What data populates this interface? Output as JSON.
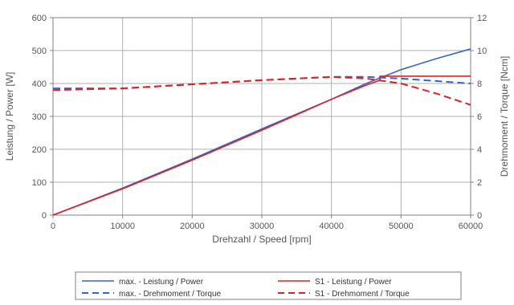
{
  "chart_data": {
    "type": "line",
    "title": "",
    "xlabel": "Drehzahl / Speed [rpm]",
    "ylabel_left": "Leistung / Power [W]",
    "ylabel_right": "Drehmoment / Torque [Ncm]",
    "xlim": [
      0,
      60000
    ],
    "ylim_left": [
      0,
      600
    ],
    "ylim_right": [
      0,
      12
    ],
    "x_ticks": [
      "0",
      "10000",
      "20000",
      "30000",
      "40000",
      "50000",
      "60000"
    ],
    "y_left_ticks": [
      "0",
      "100",
      "200",
      "300",
      "400",
      "500",
      "600"
    ],
    "y_right_ticks": [
      "0",
      "2",
      "4",
      "6",
      "8",
      "10",
      "12"
    ],
    "grid": true,
    "legend_position": "bottom",
    "series": [
      {
        "name": "max. - Leistung / Power",
        "axis": "left",
        "style": "solid",
        "color": "#3366cc",
        "x": [
          0,
          10000,
          20000,
          30000,
          40000,
          45000,
          50000,
          55000,
          60000
        ],
        "y": [
          0,
          82,
          170,
          262,
          352,
          400,
          442,
          475,
          505
        ]
      },
      {
        "name": "S1 - Leistung / Power",
        "axis": "left",
        "style": "solid",
        "color": "#e02020",
        "x": [
          0,
          10000,
          20000,
          30000,
          40000,
          45000,
          47000
        ],
        "y": [
          0,
          80,
          167,
          258,
          352,
          395,
          410
        ]
      },
      {
        "name": "max. - Drehmoment / Torque",
        "axis": "right",
        "style": "dashed",
        "color": "#3366cc",
        "x": [
          0,
          10000,
          20000,
          30000,
          40000,
          45000,
          50000,
          55000,
          60000
        ],
        "y": [
          7.7,
          7.7,
          7.95,
          8.2,
          8.4,
          8.4,
          8.3,
          8.15,
          8.0
        ]
      },
      {
        "name": "S1 - Drehmoment / Torque",
        "axis": "right",
        "style": "dashed",
        "color": "#e02020",
        "x": [
          0,
          10000,
          20000,
          30000,
          40000,
          45000,
          50000,
          55000,
          60000
        ],
        "y": [
          7.6,
          7.7,
          7.95,
          8.2,
          8.4,
          8.3,
          8.0,
          7.4,
          6.7
        ]
      }
    ],
    "s1_power_flat": {
      "x": [
        47000,
        60000
      ],
      "y": [
        422,
        422
      ]
    }
  }
}
